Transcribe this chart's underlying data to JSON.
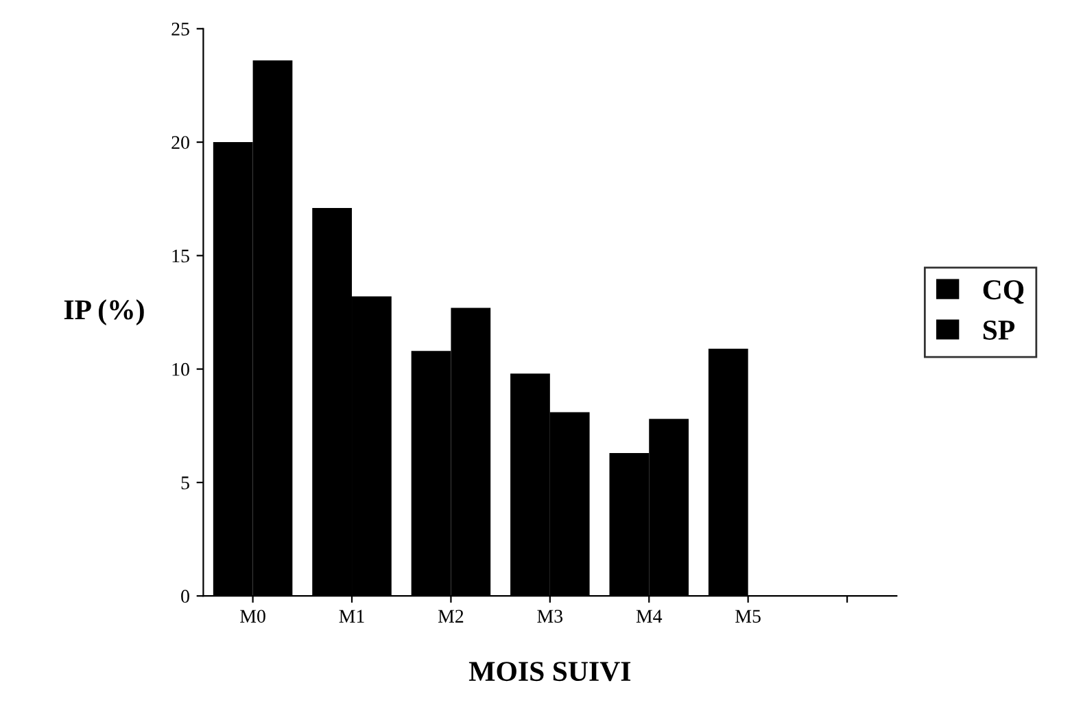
{
  "chart_data": {
    "type": "bar",
    "xlabel": "MOIS SUIVI",
    "ylabel": "IP (%)",
    "categories": [
      "M0",
      "M1",
      "M2",
      "M3",
      "M4",
      "M5",
      null
    ],
    "series": [
      {
        "name": "CQ",
        "color": "#000000",
        "values": [
          20,
          17.1,
          10.8,
          9.8,
          6.3,
          10.9,
          null
        ]
      },
      {
        "name": "SP",
        "color": "#000000",
        "values": [
          23.6,
          13.2,
          12.7,
          8.1,
          7.8,
          null,
          null
        ]
      }
    ],
    "ylim": [
      0,
      25
    ],
    "yticks": [
      0,
      5,
      10,
      15,
      20,
      25
    ],
    "grid": false,
    "legend": "right"
  }
}
